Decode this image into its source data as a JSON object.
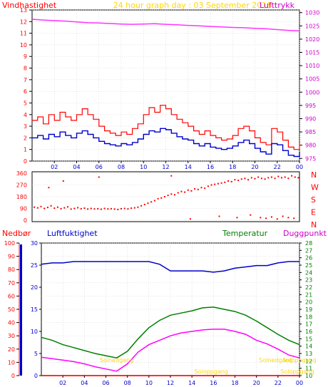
{
  "title": {
    "left": "Vindhastighet",
    "center": "24 hour graph day : 03 September 2018",
    "right": "Lufttrykk"
  },
  "colors": {
    "wind": "#ff0000",
    "pressure": "#ff33ff",
    "temp": "#008000",
    "humidity": "#0000cc",
    "dew": "#ff00ff",
    "rain": "#ff3030",
    "sun": "#ffd700",
    "axis": "#000000",
    "grid": "#c8c8c8",
    "bg": "#ffffff"
  },
  "x_ticks": [
    "02",
    "04",
    "06",
    "08",
    "10",
    "12",
    "14",
    "16",
    "18",
    "20",
    "22",
    "00"
  ],
  "chart_data": [
    {
      "type": "line",
      "title": "Vindhastighet / Lufttrykk",
      "x_range": [
        0,
        24
      ],
      "left_axis": {
        "label": "Vindhastighet",
        "ticks": [
          "0",
          "1",
          "2",
          "3",
          "4",
          "5",
          "6",
          "7",
          "8",
          "9",
          "10",
          "11",
          "12",
          "13"
        ],
        "ylim": [
          0,
          13
        ]
      },
      "right_axis": {
        "label": "Lufttrykk",
        "ticks": [
          "975",
          "980",
          "985",
          "990",
          "995",
          "1000",
          "1005",
          "1010",
          "1015",
          "1020",
          "1025",
          "1030"
        ],
        "ylim": [
          974,
          1031
        ]
      },
      "series": [
        {
          "name": "Vindhastighet",
          "kind": "gust",
          "x": [
            0,
            0.5,
            1,
            1.5,
            2,
            2.5,
            3,
            3.5,
            4,
            4.5,
            5,
            5.5,
            6,
            6.5,
            7,
            7.5,
            8,
            8.5,
            9,
            9.5,
            10,
            10.5,
            11,
            11.5,
            12,
            12.5,
            13,
            13.5,
            14,
            14.5,
            15,
            15.5,
            16,
            16.5,
            17,
            17.5,
            18,
            18.5,
            19,
            19.5,
            20,
            20.5,
            21,
            21.5,
            22,
            22.5,
            23,
            23.5,
            24
          ],
          "y": [
            3.5,
            3.8,
            3.2,
            4.0,
            3.5,
            4.2,
            3.8,
            3.5,
            4.0,
            4.5,
            4.0,
            3.6,
            3.0,
            2.6,
            2.4,
            2.2,
            2.5,
            2.3,
            2.8,
            3.2,
            4.0,
            4.6,
            4.2,
            4.8,
            4.5,
            4.0,
            3.6,
            3.3,
            3.0,
            2.6,
            2.3,
            2.6,
            2.2,
            2.0,
            1.8,
            1.9,
            2.2,
            2.8,
            3.0,
            2.6,
            2.0,
            1.6,
            1.4,
            2.8,
            2.5,
            1.8,
            1.2,
            1.0,
            1.6
          ]
        },
        {
          "name": "Vindhastighet",
          "kind": "mean",
          "x": [
            0,
            0.5,
            1,
            1.5,
            2,
            2.5,
            3,
            3.5,
            4,
            4.5,
            5,
            5.5,
            6,
            6.5,
            7,
            7.5,
            8,
            8.5,
            9,
            9.5,
            10,
            10.5,
            11,
            11.5,
            12,
            12.5,
            13,
            13.5,
            14,
            14.5,
            15,
            15.5,
            16,
            16.5,
            17,
            17.5,
            18,
            18.5,
            19,
            19.5,
            20,
            20.5,
            21,
            21.5,
            22,
            22.5,
            23,
            23.5,
            24
          ],
          "y": [
            2.0,
            2.2,
            1.9,
            2.3,
            2.1,
            2.5,
            2.2,
            2.0,
            2.4,
            2.6,
            2.3,
            2.0,
            1.7,
            1.5,
            1.4,
            1.3,
            1.5,
            1.4,
            1.6,
            1.9,
            2.3,
            2.6,
            2.5,
            2.8,
            2.7,
            2.4,
            2.1,
            1.9,
            1.8,
            1.5,
            1.3,
            1.5,
            1.2,
            1.1,
            1.0,
            1.1,
            1.3,
            1.6,
            1.8,
            1.5,
            1.1,
            0.8,
            0.6,
            1.5,
            1.4,
            0.9,
            0.5,
            0.4,
            0.8
          ]
        },
        {
          "name": "Lufttrykk",
          "x": [
            0,
            1,
            2,
            3,
            4,
            5,
            6,
            7,
            8,
            9,
            10,
            11,
            12,
            13,
            14,
            15,
            16,
            17,
            18,
            19,
            20,
            21,
            22,
            23,
            24
          ],
          "y": [
            1027.5,
            1027.2,
            1027,
            1026.8,
            1026.5,
            1026.2,
            1026.1,
            1025.9,
            1025.7,
            1025.6,
            1025.7,
            1025.8,
            1025.6,
            1025.4,
            1025.2,
            1025,
            1024.8,
            1024.6,
            1024.4,
            1024.3,
            1024.1,
            1023.9,
            1023.6,
            1023.3,
            1023.1
          ]
        }
      ]
    },
    {
      "type": "scatter",
      "title": "Vindretning",
      "right_labels": [
        "N",
        "W",
        "S",
        "E",
        "N"
      ],
      "left_axis": {
        "ticks": [
          "0",
          "90",
          "180",
          "270",
          "360"
        ],
        "ylim": [
          0,
          360
        ]
      },
      "series": [
        {
          "name": "Vindretning",
          "x": [
            0.2,
            0.5,
            0.8,
            1.1,
            1.4,
            1.7,
            2.0,
            2.3,
            2.6,
            2.9,
            3.2,
            3.5,
            3.8,
            4.1,
            4.4,
            4.7,
            5.0,
            5.3,
            5.6,
            5.9,
            6.2,
            6.5,
            6.8,
            7.1,
            7.4,
            7.7,
            8.0,
            8.3,
            8.6,
            8.9,
            9.2,
            9.5,
            9.8,
            10.1,
            10.4,
            10.7,
            11.0,
            11.3,
            11.6,
            11.9,
            12.2,
            12.5,
            12.8,
            13.1,
            13.4,
            13.7,
            14.0,
            14.3,
            14.6,
            14.9,
            15.2,
            15.5,
            15.8,
            16.1,
            16.4,
            16.7,
            17.0,
            17.3,
            17.6,
            17.9,
            18.2,
            18.5,
            18.8,
            19.1,
            19.4,
            19.7,
            20.0,
            20.3,
            20.6,
            20.9,
            21.2,
            21.5,
            21.8,
            22.1,
            22.4,
            22.7,
            23.0,
            23.3,
            23.6,
            23.9,
            1.5,
            2.8,
            6.0,
            12.5,
            14.2,
            16.8,
            18.4,
            19.6,
            20.5,
            21.0,
            21.5,
            22.0,
            22.5,
            23.0,
            23.5
          ],
          "y": [
            100,
            95,
            105,
            90,
            98,
            110,
            92,
            100,
            88,
            95,
            102,
            85,
            90,
            96,
            88,
            92,
            85,
            90,
            86,
            88,
            84,
            90,
            86,
            88,
            85,
            82,
            88,
            90,
            86,
            92,
            95,
            100,
            110,
            120,
            130,
            140,
            150,
            165,
            170,
            180,
            190,
            200,
            195,
            210,
            220,
            215,
            230,
            225,
            240,
            235,
            250,
            245,
            260,
            270,
            275,
            280,
            285,
            290,
            300,
            295,
            310,
            305,
            315,
            320,
            310,
            325,
            318,
            330,
            320,
            315,
            325,
            330,
            320,
            335,
            325,
            330,
            320,
            340,
            330,
            325,
            250,
            300,
            330,
            340,
            10,
            30,
            20,
            40,
            20,
            15,
            25,
            10,
            30,
            20,
            15
          ]
        }
      ]
    },
    {
      "type": "line",
      "title": "Nedbør / Luftfuktighet / Temperatur / Duggpunkt",
      "labels": {
        "rain": "Nedbør",
        "humidity": "Luftfuktighet",
        "temp": "Temperatur",
        "dew": "Duggpunkt"
      },
      "axis_rain": {
        "ticks": [
          "0",
          "10",
          "20",
          "30",
          "40",
          "50",
          "60",
          "70",
          "80",
          "90",
          "100"
        ],
        "ylim": [
          0,
          100
        ]
      },
      "axis_humidity": {
        "ticks": [
          "0",
          "5",
          "10",
          "15",
          "20",
          "25",
          "30"
        ],
        "ylim": [
          0,
          30
        ]
      },
      "axis_temp": {
        "ticks": [
          "10",
          "11",
          "12",
          "13",
          "14",
          "15",
          "16",
          "17",
          "18",
          "19",
          "20",
          "21",
          "22",
          "23",
          "24",
          "25",
          "26",
          "27",
          "28"
        ],
        "ylim": [
          10,
          28
        ]
      },
      "sun_labels": [
        "Solnedgang",
        "Soloppgang",
        "Soloppgang",
        "Solnedgang",
        "Soloppgang"
      ],
      "series": [
        {
          "name": "Luftfuktighet",
          "axis": "rain",
          "x": [
            0,
            1,
            2,
            3,
            4,
            5,
            6,
            7,
            8,
            9,
            10,
            11,
            12,
            13,
            14,
            15,
            16,
            17,
            18,
            19,
            20,
            21,
            22,
            23,
            24
          ],
          "y": [
            84,
            85,
            85,
            86,
            86,
            86,
            86,
            86,
            86,
            86,
            86,
            84,
            79,
            79,
            79,
            79,
            78,
            79,
            81,
            82,
            83,
            83,
            85,
            86,
            86
          ]
        },
        {
          "name": "Temperatur",
          "axis": "temp",
          "x": [
            0,
            1,
            2,
            3,
            4,
            5,
            6,
            7,
            8,
            9,
            10,
            11,
            12,
            13,
            14,
            15,
            16,
            17,
            18,
            19,
            20,
            21,
            22,
            23,
            24
          ],
          "y": [
            15.2,
            14.8,
            14.2,
            13.8,
            13.4,
            13.0,
            12.7,
            12.4,
            13.3,
            15.0,
            16.5,
            17.5,
            18.2,
            18.5,
            18.8,
            19.2,
            19.3,
            19.0,
            18.7,
            18.2,
            17.4,
            16.5,
            15.6,
            14.8,
            14.2
          ]
        },
        {
          "name": "Duggpunkt",
          "axis": "temp",
          "x": [
            0,
            1,
            2,
            3,
            4,
            5,
            6,
            7,
            8,
            9,
            10,
            11,
            12,
            13,
            14,
            15,
            16,
            17,
            18,
            19,
            20,
            21,
            22,
            23,
            24
          ],
          "y": [
            12.5,
            12.3,
            12.1,
            11.9,
            11.6,
            11.2,
            10.9,
            10.6,
            11.6,
            13.2,
            14.2,
            14.8,
            15.4,
            15.8,
            16.0,
            16.2,
            16.3,
            16.3,
            16.0,
            15.6,
            14.8,
            14.3,
            13.6,
            12.8,
            12.4
          ]
        },
        {
          "name": "Nedbør",
          "axis": "rain",
          "x": [
            0,
            24
          ],
          "y": [
            0,
            0
          ]
        }
      ]
    }
  ]
}
